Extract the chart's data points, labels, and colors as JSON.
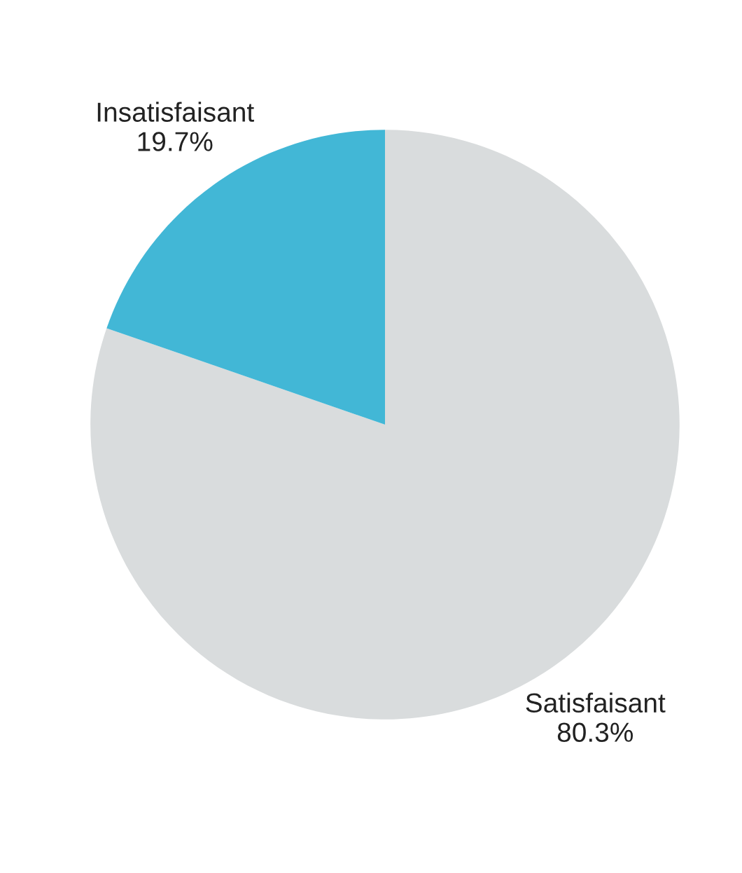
{
  "chart_data": {
    "type": "pie",
    "categories": [
      "Satisfaisant",
      "Insatisfaisant"
    ],
    "values": [
      80.3,
      19.7
    ],
    "colors": [
      "#d9dcdd",
      "#42b7d6"
    ],
    "value_labels": [
      "80.3%",
      "19.7%"
    ],
    "legend": false
  }
}
